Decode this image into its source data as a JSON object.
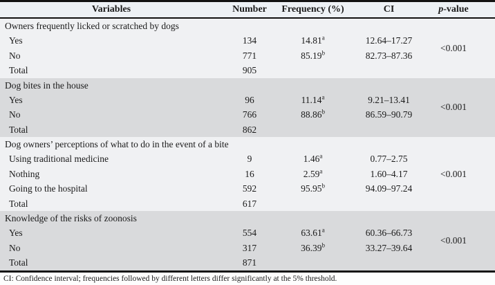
{
  "table": {
    "headers": {
      "variables": "Variables",
      "number": "Number",
      "frequency": "Frequency (%)",
      "ci": "CI",
      "p_italic": "p",
      "p_rest": "-value"
    },
    "sections": [
      {
        "title": "Owners frequently licked or scratched by dogs",
        "p_value": "<0.001",
        "rows": [
          {
            "label": "Yes",
            "number": "134",
            "frequency": "14.81",
            "sup": "a",
            "ci": "12.64–17.27"
          },
          {
            "label": "No",
            "number": "771",
            "frequency": "85.19",
            "sup": "b",
            "ci": "82.73–87.36"
          }
        ],
        "total": {
          "label": "Total",
          "number": "905"
        }
      },
      {
        "title": "Dog bites in the house",
        "p_value": "<0.001",
        "rows": [
          {
            "label": "Yes",
            "number": "96",
            "frequency": "11.14",
            "sup": "a",
            "ci": "9.21–13.41"
          },
          {
            "label": "No",
            "number": "766",
            "frequency": "88.86",
            "sup": "b",
            "ci": "86.59–90.79"
          }
        ],
        "total": {
          "label": "Total",
          "number": "862"
        }
      },
      {
        "title": "Dog owners’ perceptions of what to do in the event of a bite",
        "p_value": "<0.001",
        "rows": [
          {
            "label": "Using traditional medicine",
            "number": "9",
            "frequency": "1.46",
            "sup": "a",
            "ci": "0.77–2.75"
          },
          {
            "label": "Nothing",
            "number": "16",
            "frequency": "2.59",
            "sup": "a",
            "ci": "1.60–4.17"
          },
          {
            "label": "Going to the hospital",
            "number": "592",
            "frequency": "95.95",
            "sup": "b",
            "ci": "94.09–97.24"
          }
        ],
        "total": {
          "label": "Total",
          "number": "617"
        }
      },
      {
        "title": "Knowledge of the risks of zoonosis",
        "p_value": "<0.001",
        "rows": [
          {
            "label": "Yes",
            "number": "554",
            "frequency": "63.61",
            "sup": "a",
            "ci": "60.36–66.73"
          },
          {
            "label": "No",
            "number": "317",
            "frequency": "36.39",
            "sup": "b",
            "ci": "33.27–39.64"
          }
        ],
        "total": {
          "label": "Total",
          "number": "871"
        }
      }
    ],
    "footnote": "CI: Confidence interval; frequencies followed by different letters differ significantly at the 5% threshold.",
    "colors": {
      "light_section_bg": "#f0f1f3",
      "shaded_section_bg": "#d9dadc",
      "header_bg": "#edf1f5",
      "border": "#121212",
      "text": "#1a1a1a"
    }
  }
}
